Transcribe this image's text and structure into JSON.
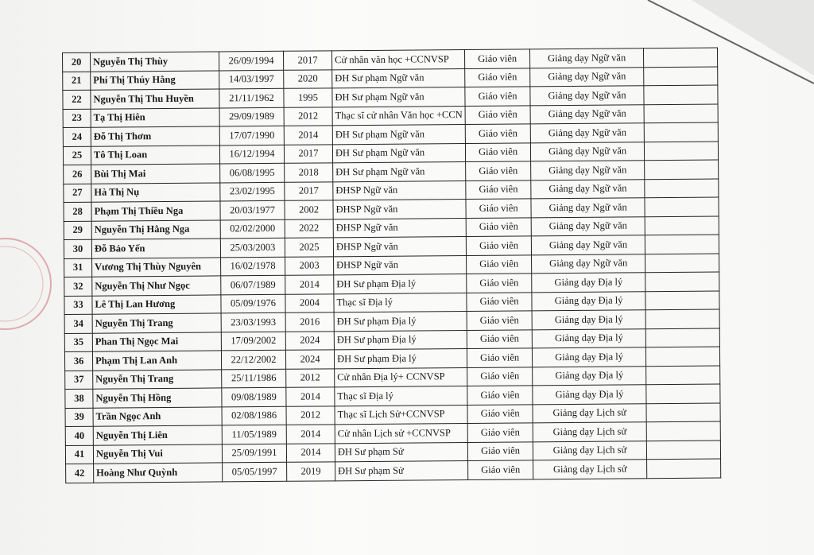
{
  "table": {
    "rows": [
      {
        "stt": "20",
        "name": "Nguyễn Thị Thùy",
        "dob": "26/09/1994",
        "year": "2017",
        "qualification": "Cử nhân văn học +CCNVSP",
        "role": "Giáo viên",
        "task": "Giảng dạy Ngữ văn",
        "note": ""
      },
      {
        "stt": "21",
        "name": "Phí Thị Thúy Hằng",
        "dob": "14/03/1997",
        "year": "2020",
        "qualification": "ĐH Sư phạm Ngữ văn",
        "role": "Giáo viên",
        "task": "Giảng dạy Ngữ văn",
        "note": ""
      },
      {
        "stt": "22",
        "name": "Nguyễn Thị Thu Huyền",
        "dob": "21/11/1962",
        "year": "1995",
        "qualification": "ĐH Sư phạm Ngữ văn",
        "role": "Giáo viên",
        "task": "Giảng dạy Ngữ văn",
        "note": ""
      },
      {
        "stt": "23",
        "name": "Tạ Thị Hiên",
        "dob": "29/09/1989",
        "year": "2012",
        "qualification": "Thạc sĩ cử nhân Văn học +CCN",
        "role": "Giáo viên",
        "task": "Giảng dạy Ngữ văn",
        "note": ""
      },
      {
        "stt": "24",
        "name": "Đỗ Thị Thơm",
        "dob": "17/07/1990",
        "year": "2014",
        "qualification": "ĐH Sư phạm Ngữ văn",
        "role": "Giáo viên",
        "task": "Giảng dạy Ngữ văn",
        "note": ""
      },
      {
        "stt": "25",
        "name": "Tô Thị Loan",
        "dob": "16/12/1994",
        "year": "2017",
        "qualification": "ĐH Sư phạm Ngữ văn",
        "role": "Giáo viên",
        "task": "Giảng dạy Ngữ văn",
        "note": ""
      },
      {
        "stt": "26",
        "name": "Bùi Thị Mai",
        "dob": "06/08/1995",
        "year": "2018",
        "qualification": "ĐH Sư phạm Ngữ văn",
        "role": "Giáo viên",
        "task": "Giảng dạy Ngữ văn",
        "note": ""
      },
      {
        "stt": "27",
        "name": "Hà Thị Nụ",
        "dob": "23/02/1995",
        "year": "2017",
        "qualification": "ĐHSP Ngữ văn",
        "role": "Giáo viên",
        "task": "Giảng dạy Ngữ văn",
        "note": ""
      },
      {
        "stt": "28",
        "name": "Phạm Thị Thiều Nga",
        "dob": "20/03/1977",
        "year": "2002",
        "qualification": "ĐHSP Ngữ văn",
        "role": "Giáo viên",
        "task": "Giảng dạy Ngữ văn",
        "note": ""
      },
      {
        "stt": "29",
        "name": "Nguyễn Thị Hằng Nga",
        "dob": "02/02/2000",
        "year": "2022",
        "qualification": "ĐHSP Ngữ văn",
        "role": "Giáo viên",
        "task": "Giảng dạy Ngữ văn",
        "note": ""
      },
      {
        "stt": "30",
        "name": "Đỗ Bảo Yến",
        "dob": "25/03/2003",
        "year": "2025",
        "qualification": "ĐHSP Ngữ văn",
        "role": "Giáo viên",
        "task": "Giảng dạy Ngữ văn",
        "note": ""
      },
      {
        "stt": "31",
        "name": "Vương Thị Thùy Nguyên",
        "dob": "16/02/1978",
        "year": "2003",
        "qualification": "ĐHSP Ngữ văn",
        "role": "Giáo viên",
        "task": "Giảng dạy Ngữ văn",
        "note": ""
      },
      {
        "stt": "32",
        "name": "Nguyễn Thị Như Ngọc",
        "dob": "06/07/1989",
        "year": "2014",
        "qualification": "ĐH Sư phạm Địa lý",
        "role": "Giáo viên",
        "task": "Giảng dạy Địa lý",
        "note": ""
      },
      {
        "stt": "33",
        "name": "Lê Thị Lan Hương",
        "dob": "05/09/1976",
        "year": "2004",
        "qualification": "Thạc sĩ Địa lý",
        "role": "Giáo viên",
        "task": "Giảng dạy Địa lý",
        "note": ""
      },
      {
        "stt": "34",
        "name": "Nguyễn Thị Trang",
        "dob": "23/03/1993",
        "year": "2016",
        "qualification": "ĐH Sư phạm Địa lý",
        "role": "Giáo viên",
        "task": "Giảng dạy Địa lý",
        "note": ""
      },
      {
        "stt": "35",
        "name": "Phan Thị Ngọc Mai",
        "dob": "17/09/2002",
        "year": "2024",
        "qualification": "ĐH Sư phạm Địa lý",
        "role": "Giáo viên",
        "task": "Giảng dạy Địa lý",
        "note": ""
      },
      {
        "stt": "36",
        "name": "Phạm Thị Lan Anh",
        "dob": "22/12/2002",
        "year": "2024",
        "qualification": "ĐH Sư phạm Địa lý",
        "role": "Giáo viên",
        "task": "Giảng dạy Địa lý",
        "note": ""
      },
      {
        "stt": "37",
        "name": "Nguyễn Thị Trang",
        "dob": "25/11/1986",
        "year": "2012",
        "qualification": "Cử nhân Địa lý+ CCNVSP",
        "role": "Giáo viên",
        "task": "Giảng dạy Địa lý",
        "note": ""
      },
      {
        "stt": "38",
        "name": "Nguyễn Thị Hồng",
        "dob": "09/08/1989",
        "year": "2014",
        "qualification": "Thạc sĩ Địa lý",
        "role": "Giáo viên",
        "task": "Giảng dạy Địa lý",
        "note": ""
      },
      {
        "stt": "39",
        "name": "Trần Ngọc Anh",
        "dob": "02/08/1986",
        "year": "2012",
        "qualification": "Thạc sĩ Lịch Sử+CCNVSP",
        "role": "Giáo viên",
        "task": "Giảng dạy Lịch sử",
        "note": ""
      },
      {
        "stt": "40",
        "name": "Nguyễn Thị Liên",
        "dob": "11/05/1989",
        "year": "2014",
        "qualification": "Cử nhân Lịch sử +CCNVSP",
        "role": "Giáo viên",
        "task": "Giảng dạy Lịch sử",
        "note": ""
      },
      {
        "stt": "41",
        "name": "Nguyễn Thị Vui",
        "dob": "25/09/1991",
        "year": "2014",
        "qualification": "ĐH Sư phạm Sử",
        "role": "Giáo viên",
        "task": "Giảng dạy Lịch sử",
        "note": ""
      },
      {
        "stt": "42",
        "name": "Hoàng Như Quỳnh",
        "dob": "05/05/1997",
        "year": "2019",
        "qualification": "ĐH Sư phạm Sử",
        "role": "Giáo viên",
        "task": "Giảng dạy Lịch sử",
        "note": ""
      }
    ]
  }
}
